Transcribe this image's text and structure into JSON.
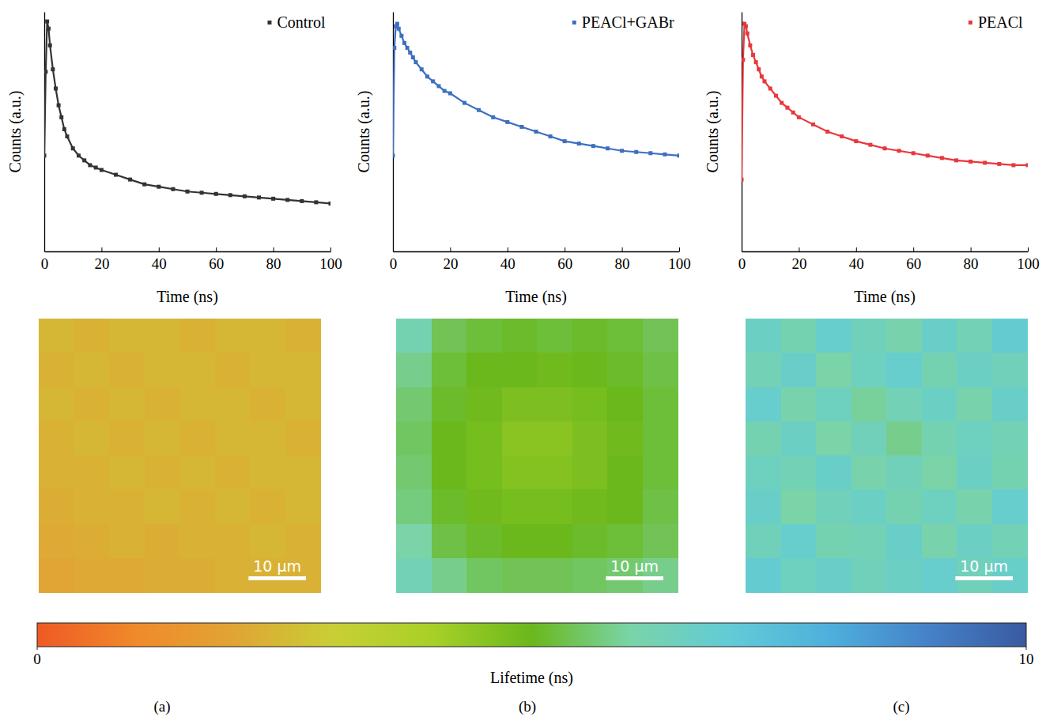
{
  "chart_data": [
    {
      "type": "line",
      "x_label": "Time (ns)",
      "y_label": "Counts (a.u.)",
      "x": [
        0,
        0.5,
        1,
        1.5,
        2,
        3,
        4,
        5,
        6,
        7,
        8,
        10,
        12,
        14,
        16,
        18,
        20,
        25,
        30,
        35,
        40,
        45,
        50,
        55,
        60,
        65,
        70,
        75,
        80,
        85,
        90,
        95,
        100
      ],
      "series": [
        {
          "name": "Control",
          "color": "#333333",
          "marker": "square",
          "values": [
            0.4,
            0.75,
            0.96,
            0.93,
            0.86,
            0.76,
            0.68,
            0.61,
            0.56,
            0.51,
            0.48,
            0.43,
            0.4,
            0.38,
            0.36,
            0.35,
            0.34,
            0.32,
            0.3,
            0.28,
            0.27,
            0.26,
            0.25,
            0.245,
            0.24,
            0.235,
            0.23,
            0.225,
            0.22,
            0.215,
            0.21,
            0.205,
            0.2
          ]
        }
      ],
      "xlim": [
        0,
        100
      ],
      "xticks": [
        0,
        20,
        40,
        60,
        80,
        100
      ],
      "ylim": [
        0,
        1
      ],
      "tick_labels": "x",
      "legend": "upper right"
    },
    {
      "type": "line",
      "x_label": "Time (ns)",
      "y_label": "Counts (a.u.)",
      "x": [
        0,
        0.5,
        1,
        1.5,
        2,
        3,
        4,
        5,
        6,
        7,
        8,
        10,
        12,
        14,
        16,
        18,
        20,
        25,
        30,
        35,
        40,
        45,
        50,
        55,
        60,
        65,
        70,
        75,
        80,
        85,
        90,
        95,
        100
      ],
      "series": [
        {
          "name": "PEACl+GABr",
          "color": "#3d6fc0",
          "marker": "square",
          "values": [
            0.4,
            0.85,
            0.94,
            0.95,
            0.93,
            0.9,
            0.87,
            0.85,
            0.83,
            0.81,
            0.79,
            0.76,
            0.73,
            0.71,
            0.69,
            0.67,
            0.66,
            0.62,
            0.59,
            0.56,
            0.54,
            0.52,
            0.5,
            0.48,
            0.46,
            0.45,
            0.44,
            0.43,
            0.42,
            0.415,
            0.41,
            0.405,
            0.4
          ]
        }
      ],
      "xlim": [
        0,
        100
      ],
      "xticks": [
        0,
        20,
        40,
        60,
        80,
        100
      ],
      "ylim": [
        0,
        1
      ],
      "tick_labels": "x",
      "legend": "upper right"
    },
    {
      "type": "line",
      "x_label": "Time (ns)",
      "y_label": "Counts (a.u.)",
      "x": [
        0,
        0.5,
        1,
        1.5,
        2,
        3,
        4,
        5,
        6,
        7,
        8,
        10,
        12,
        14,
        16,
        18,
        20,
        25,
        30,
        35,
        40,
        45,
        50,
        55,
        60,
        65,
        70,
        75,
        80,
        85,
        90,
        95,
        100
      ],
      "series": [
        {
          "name": "PEACl",
          "color": "#e8383d",
          "marker": "square",
          "values": [
            0.3,
            0.8,
            0.95,
            0.94,
            0.91,
            0.86,
            0.82,
            0.79,
            0.76,
            0.73,
            0.71,
            0.68,
            0.65,
            0.62,
            0.6,
            0.58,
            0.56,
            0.53,
            0.5,
            0.48,
            0.46,
            0.445,
            0.43,
            0.42,
            0.41,
            0.4,
            0.39,
            0.38,
            0.375,
            0.37,
            0.365,
            0.36,
            0.36
          ]
        }
      ],
      "xlim": [
        0,
        100
      ],
      "xticks": [
        0,
        20,
        40,
        60,
        80,
        100
      ],
      "ylim": [
        0,
        1
      ],
      "tick_labels": "x",
      "legend": "upper right"
    },
    {
      "type": "heatmap",
      "scale_bar": {
        "label": "10 μm",
        "length": 10,
        "field_of_view": 49
      },
      "cells": [
        [
          2.4,
          2.3,
          2.4,
          2.4,
          2.3,
          2.4,
          2.4,
          2.3
        ],
        [
          2.3,
          2.4,
          2.3,
          2.4,
          2.4,
          2.3,
          2.4,
          2.4
        ],
        [
          2.4,
          2.3,
          2.4,
          2.3,
          2.4,
          2.4,
          2.3,
          2.4
        ],
        [
          2.3,
          2.4,
          2.3,
          2.4,
          2.3,
          2.4,
          2.4,
          2.3
        ],
        [
          2.3,
          2.3,
          2.4,
          2.3,
          2.4,
          2.3,
          2.4,
          2.4
        ],
        [
          2.2,
          2.3,
          2.3,
          2.4,
          2.3,
          2.4,
          2.3,
          2.4
        ],
        [
          2.1,
          2.2,
          2.3,
          2.2,
          2.3,
          2.3,
          2.4,
          2.3
        ],
        [
          2.0,
          2.1,
          2.1,
          2.2,
          2.2,
          2.3,
          2.3,
          2.3
        ]
      ]
    },
    {
      "type": "heatmap",
      "scale_bar": {
        "label": "10 μm",
        "length": 10,
        "field_of_view": 49
      },
      "cells": [
        [
          6.2,
          5.4,
          5.2,
          5.1,
          5.2,
          5.1,
          5.2,
          5.4
        ],
        [
          5.8,
          5.2,
          5.0,
          5.0,
          4.9,
          5.0,
          5.1,
          5.3
        ],
        [
          5.6,
          5.1,
          4.9,
          4.7,
          4.7,
          4.8,
          5.0,
          5.2
        ],
        [
          5.5,
          5.0,
          4.8,
          4.5,
          4.5,
          4.7,
          4.9,
          5.2
        ],
        [
          5.6,
          5.0,
          4.8,
          4.6,
          4.6,
          4.7,
          5.0,
          5.2
        ],
        [
          5.7,
          5.1,
          4.9,
          4.8,
          4.8,
          4.9,
          5.0,
          5.3
        ],
        [
          6.0,
          5.3,
          5.1,
          5.0,
          5.0,
          5.1,
          5.2,
          5.4
        ],
        [
          6.3,
          5.8,
          5.5,
          5.4,
          5.4,
          5.5,
          5.6,
          5.8
        ]
      ]
    },
    {
      "type": "heatmap",
      "scale_bar": {
        "label": "10 μm",
        "length": 10,
        "field_of_view": 49
      },
      "cells": [
        [
          6.6,
          6.2,
          6.8,
          6.4,
          6.1,
          6.7,
          6.3,
          6.9
        ],
        [
          6.3,
          6.7,
          6.0,
          6.5,
          6.8,
          6.2,
          6.6,
          6.4
        ],
        [
          6.8,
          6.1,
          6.5,
          5.9,
          6.3,
          6.6,
          6.1,
          6.7
        ],
        [
          6.2,
          6.6,
          6.0,
          6.4,
          5.8,
          6.2,
          6.5,
          6.3
        ],
        [
          6.5,
          6.3,
          6.7,
          6.1,
          6.4,
          6.0,
          6.6,
          6.2
        ],
        [
          6.7,
          6.0,
          6.4,
          6.6,
          6.2,
          6.5,
          6.1,
          6.8
        ],
        [
          6.4,
          6.8,
          6.2,
          6.3,
          6.7,
          6.1,
          6.6,
          6.3
        ],
        [
          6.9,
          6.5,
          6.7,
          6.4,
          6.6,
          6.8,
          6.4,
          6.7
        ]
      ]
    }
  ],
  "colorbar": {
    "label": "Lifetime (ns)",
    "range": [
      0,
      10
    ],
    "ticks": [
      0,
      10
    ]
  },
  "panel_labels": [
    "(a)",
    "(b)",
    "(c)"
  ]
}
